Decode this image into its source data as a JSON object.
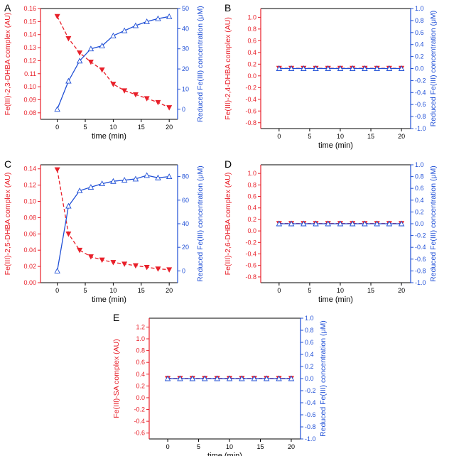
{
  "colors": {
    "left": "#e8202a",
    "right": "#1f4fd6",
    "axis": "#000000"
  },
  "xlabel": "time (min)",
  "chart_data": [
    {
      "type": "line",
      "panel_label": "A",
      "ylabel_left": "Fe(III)-2,3-DHBA complex (AU)",
      "ylabel_right": "Reduced Fe(III) concentration (μM)",
      "xlim": [
        -3,
        21.5
      ],
      "xticks": [
        0,
        5,
        10,
        15,
        20
      ],
      "ylim_left": [
        0.075,
        0.16
      ],
      "yticks_left": [
        0.08,
        0.09,
        0.1,
        0.11,
        0.12,
        0.13,
        0.14,
        0.15,
        0.16
      ],
      "ylim_right": [
        -5,
        50
      ],
      "yticks_right": [
        0,
        10,
        20,
        30,
        40,
        50
      ],
      "series": [
        {
          "name": "Fe(III)-2,3-DHBA complex",
          "axis": "left",
          "style": "dash",
          "marker": "filled-down-triangle",
          "x": [
            0,
            2,
            4,
            6,
            8,
            10,
            12,
            14,
            16,
            18,
            20
          ],
          "values": [
            0.154,
            0.137,
            0.126,
            0.119,
            0.113,
            0.102,
            0.097,
            0.094,
            0.091,
            0.088,
            0.084
          ]
        },
        {
          "name": "Reduced Fe(III) concentration",
          "axis": "right",
          "style": "solid",
          "marker": "open-up-triangle",
          "x": [
            0,
            2,
            4,
            6,
            8,
            10,
            12,
            14,
            16,
            18,
            20
          ],
          "values": [
            0,
            14,
            24,
            30,
            31.5,
            36.5,
            39,
            41.5,
            43.5,
            45,
            46
          ]
        }
      ]
    },
    {
      "type": "line",
      "panel_label": "B",
      "ylabel_left": "Fe(III)-2,4-DHBA complex (AU)",
      "ylabel_right": "Reduced Fe(III) concentration (μM)",
      "xlim": [
        -3,
        21.5
      ],
      "xticks": [
        0,
        5,
        10,
        15,
        20
      ],
      "ylim_left": [
        -0.9,
        1.15
      ],
      "yticks_left": [
        -0.8,
        -0.6,
        -0.4,
        -0.2,
        0.0,
        0.2,
        0.4,
        0.6,
        0.8,
        1.0
      ],
      "ylim_right": [
        -1.0,
        1.0
      ],
      "yticks_right": [
        -1.0,
        -0.8,
        -0.6,
        -0.4,
        -0.2,
        0.0,
        0.2,
        0.4,
        0.6,
        0.8,
        1.0
      ],
      "series": [
        {
          "name": "Fe(III)-2,4-DHBA complex",
          "axis": "left",
          "style": "dash",
          "marker": "filled-down-triangle",
          "x": [
            0,
            2,
            4,
            6,
            8,
            10,
            12,
            14,
            16,
            18,
            20
          ],
          "values": [
            0.13,
            0.13,
            0.13,
            0.13,
            0.13,
            0.13,
            0.13,
            0.13,
            0.13,
            0.13,
            0.13
          ]
        },
        {
          "name": "Reduced Fe(III) concentration",
          "axis": "right",
          "style": "solid",
          "marker": "open-up-triangle",
          "x": [
            0,
            2,
            4,
            6,
            8,
            10,
            12,
            14,
            16,
            18,
            20
          ],
          "values": [
            0,
            0,
            0,
            0,
            0,
            0,
            0,
            0,
            0,
            0,
            0
          ]
        }
      ]
    },
    {
      "type": "line",
      "panel_label": "C",
      "ylabel_left": "Fe(III)-2,5-DHBA complex (AU)",
      "ylabel_right": "Reduced Fe(III) concentration (μM)",
      "xlim": [
        -3,
        21.5
      ],
      "xticks": [
        0,
        5,
        10,
        15,
        20
      ],
      "ylim_left": [
        0.0,
        0.145
      ],
      "yticks_left": [
        0.0,
        0.02,
        0.04,
        0.06,
        0.08,
        0.1,
        0.12,
        0.14
      ],
      "ylim_right": [
        -10,
        90
      ],
      "yticks_right": [
        0,
        20,
        40,
        60,
        80
      ],
      "series": [
        {
          "name": "Fe(III)-2,5-DHBA complex",
          "axis": "left",
          "style": "dash",
          "marker": "filled-down-triangle",
          "x": [
            0,
            2,
            4,
            6,
            8,
            10,
            12,
            14,
            16,
            18,
            20
          ],
          "values": [
            0.139,
            0.06,
            0.04,
            0.032,
            0.028,
            0.025,
            0.023,
            0.021,
            0.019,
            0.017,
            0.016
          ]
        },
        {
          "name": "Reduced Fe(III) concentration",
          "axis": "right",
          "style": "solid",
          "marker": "open-up-triangle",
          "x": [
            0,
            2,
            4,
            6,
            8,
            10,
            12,
            14,
            16,
            18,
            20
          ],
          "values": [
            0,
            55,
            68,
            71,
            74,
            76,
            77,
            78,
            81,
            79,
            80
          ]
        }
      ]
    },
    {
      "type": "line",
      "panel_label": "D",
      "ylabel_left": "Fe(III)-2,6-DHBA complex (AU)",
      "ylabel_right": "Reduced Fe(III) concentration (μM)",
      "xlim": [
        -3,
        21.5
      ],
      "xticks": [
        0,
        5,
        10,
        15,
        20
      ],
      "ylim_left": [
        -0.9,
        1.15
      ],
      "yticks_left": [
        -0.8,
        -0.6,
        -0.4,
        -0.2,
        0.0,
        0.2,
        0.4,
        0.6,
        0.8,
        1.0
      ],
      "ylim_right": [
        -1.0,
        1.0
      ],
      "yticks_right": [
        -1.0,
        -0.8,
        -0.6,
        -0.4,
        -0.2,
        0.0,
        0.2,
        0.4,
        0.6,
        0.8,
        1.0
      ],
      "series": [
        {
          "name": "Fe(III)-2,6-DHBA complex",
          "axis": "left",
          "style": "dash",
          "marker": "filled-down-triangle",
          "x": [
            0,
            2,
            4,
            6,
            8,
            10,
            12,
            14,
            16,
            18,
            20
          ],
          "values": [
            0.13,
            0.13,
            0.13,
            0.13,
            0.13,
            0.13,
            0.13,
            0.13,
            0.13,
            0.13,
            0.13
          ]
        },
        {
          "name": "Reduced Fe(III) concentration",
          "axis": "right",
          "style": "solid",
          "marker": "open-up-triangle",
          "x": [
            0,
            2,
            4,
            6,
            8,
            10,
            12,
            14,
            16,
            18,
            20
          ],
          "values": [
            0,
            0,
            0,
            0,
            0,
            0,
            0,
            0,
            0,
            0,
            0
          ]
        }
      ]
    },
    {
      "type": "line",
      "panel_label": "E",
      "ylabel_left": "Fe(III)-SA complex (AU)",
      "ylabel_right": "Reduced Fe(III) concentration (μM)",
      "xlim": [
        -3,
        21.5
      ],
      "xticks": [
        0,
        5,
        10,
        15,
        20
      ],
      "ylim_left": [
        -0.7,
        1.35
      ],
      "yticks_left": [
        -0.6,
        -0.4,
        -0.2,
        0.0,
        0.2,
        0.4,
        0.6,
        0.8,
        1.0,
        1.2
      ],
      "ylim_right": [
        -1.0,
        1.0
      ],
      "yticks_right": [
        -1.0,
        -0.8,
        -0.6,
        -0.4,
        -0.2,
        0.0,
        0.2,
        0.4,
        0.6,
        0.8,
        1.0
      ],
      "series": [
        {
          "name": "Fe(III)-SA complex",
          "axis": "left",
          "style": "dash",
          "marker": "filled-down-triangle",
          "x": [
            0,
            2,
            4,
            6,
            8,
            10,
            12,
            14,
            16,
            18,
            20
          ],
          "values": [
            0.33,
            0.33,
            0.33,
            0.33,
            0.33,
            0.33,
            0.33,
            0.33,
            0.33,
            0.33,
            0.33
          ]
        },
        {
          "name": "Reduced Fe(III) concentration",
          "axis": "right",
          "style": "solid",
          "marker": "open-up-triangle",
          "x": [
            0,
            2,
            4,
            6,
            8,
            10,
            12,
            14,
            16,
            18,
            20
          ],
          "values": [
            0,
            0,
            0,
            0,
            0,
            0,
            0,
            0,
            0,
            0,
            0
          ]
        }
      ]
    }
  ]
}
